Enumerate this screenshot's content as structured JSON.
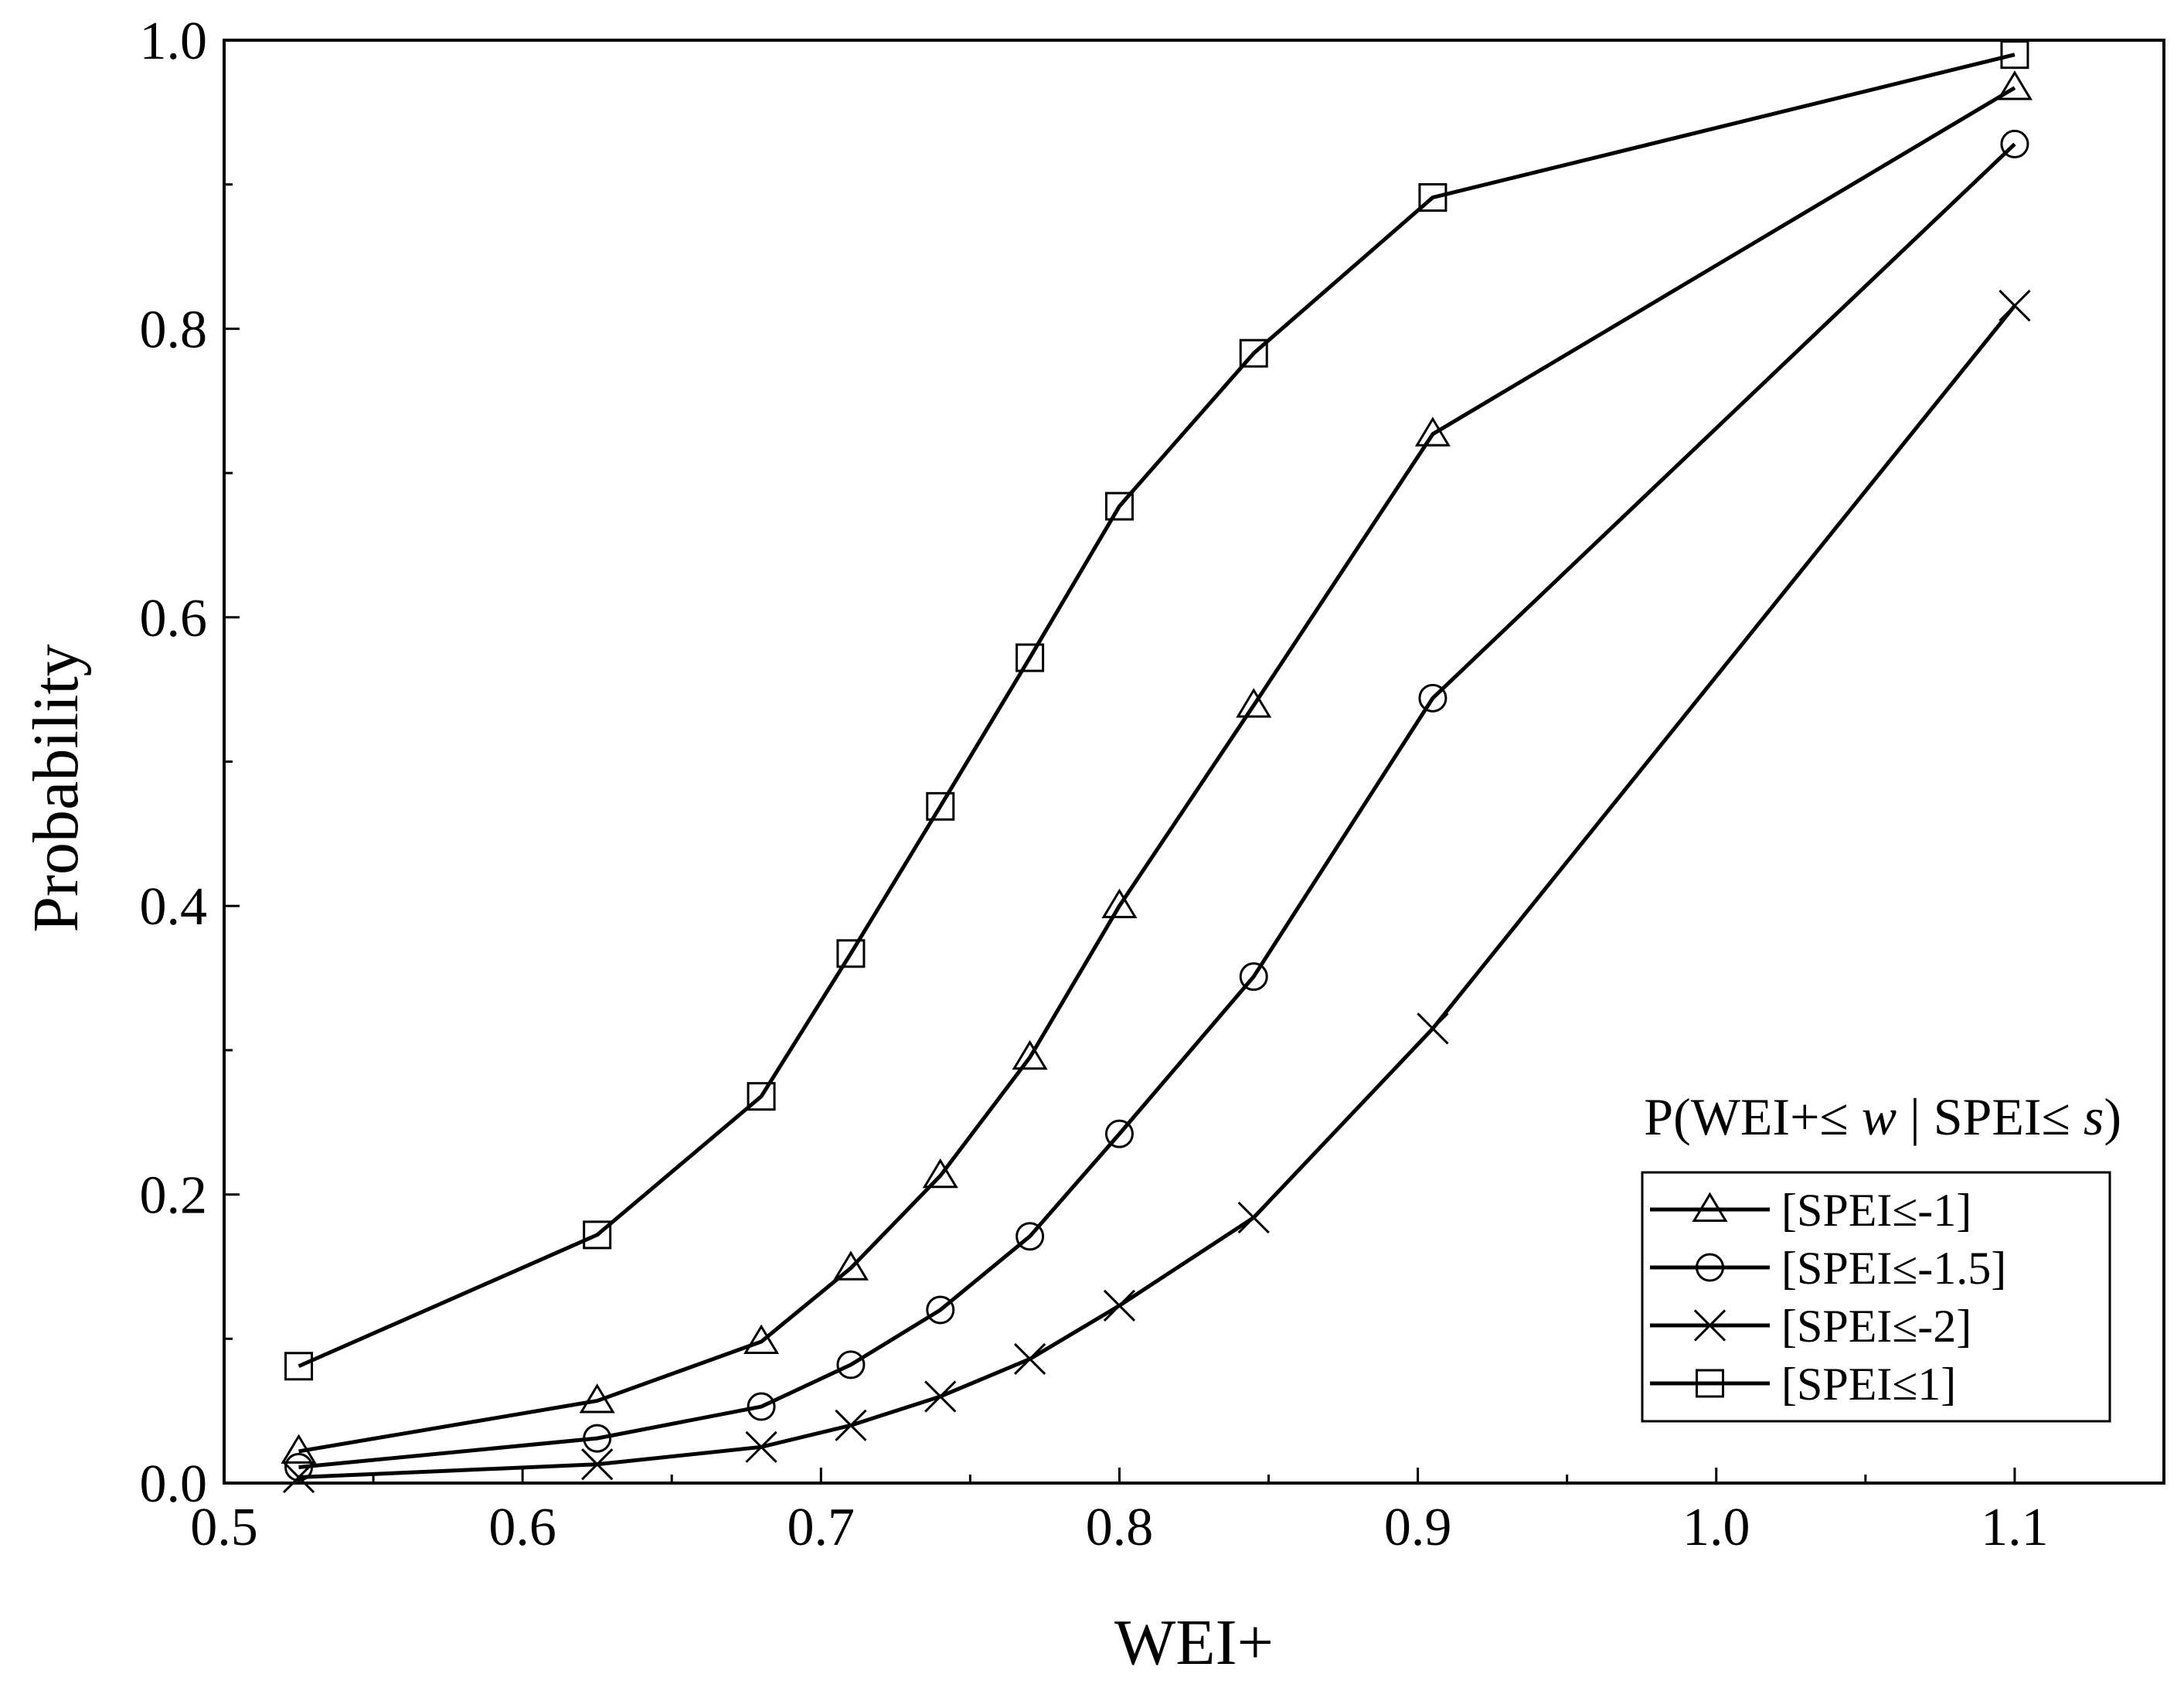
{
  "chart_data": {
    "type": "line",
    "title": "",
    "xlabel": "WEI+",
    "ylabel": "Probability",
    "xlim": [
      0.5,
      1.15
    ],
    "ylim": [
      0.0,
      1.0
    ],
    "grid": false,
    "x_ticks": [
      "0.5",
      "0.6",
      "0.7",
      "0.8",
      "0.9",
      "1.0",
      "1.1"
    ],
    "y_ticks": [
      "0.0",
      "0.2",
      "0.4",
      "0.6",
      "0.8",
      "1.0"
    ],
    "x_tick_values": [
      0.5,
      0.6,
      0.7,
      0.8,
      0.9,
      1.0,
      1.1
    ],
    "y_tick_values": [
      0.0,
      0.2,
      0.4,
      0.6,
      0.8,
      1.0
    ],
    "x": [
      0.525,
      0.625,
      0.68,
      0.71,
      0.74,
      0.77,
      0.8,
      0.845,
      0.905,
      1.1
    ],
    "annotation": {
      "prefix": "P(WEI+≤ ",
      "var1": "w",
      "middle": " | SPEI≤ ",
      "var2": "s",
      "suffix": ")"
    },
    "legend_position": "bottom-right",
    "series": [
      {
        "name": "[SPEI≤-1]",
        "marker": "triangle",
        "values": [
          0.022,
          0.057,
          0.098,
          0.149,
          0.213,
          0.295,
          0.4,
          0.539,
          0.727,
          0.967
        ]
      },
      {
        "name": "[SPEI≤-1.5]",
        "marker": "circle",
        "values": [
          0.011,
          0.031,
          0.053,
          0.082,
          0.12,
          0.171,
          0.242,
          0.351,
          0.544,
          0.928
        ]
      },
      {
        "name": "[SPEI≤-2]",
        "marker": "cross",
        "values": [
          0.004,
          0.013,
          0.025,
          0.04,
          0.06,
          0.086,
          0.123,
          0.184,
          0.315,
          0.816
        ]
      },
      {
        "name": "[SPEI≤1]",
        "marker": "square",
        "values": [
          0.081,
          0.172,
          0.268,
          0.367,
          0.469,
          0.572,
          0.677,
          0.783,
          0.891,
          0.99
        ]
      }
    ]
  }
}
